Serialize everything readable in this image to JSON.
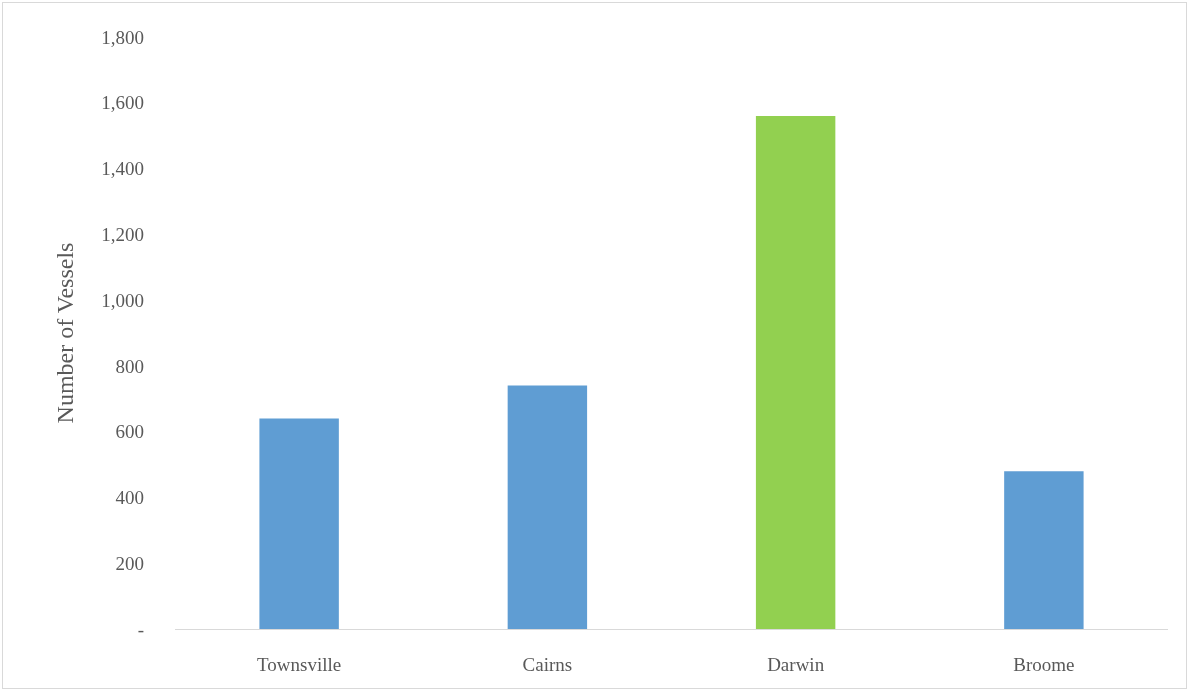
{
  "chart_data": {
    "type": "bar",
    "ylabel": "Number of Vessels",
    "categories": [
      "Townsville",
      "Cairns",
      "Darwin",
      "Broome"
    ],
    "values": [
      640,
      740,
      1560,
      480
    ],
    "colors": [
      "#5f9dd3",
      "#5f9dd3",
      "#92d050",
      "#5f9dd3"
    ],
    "ylim": [
      0,
      1800
    ],
    "yticks": [
      {
        "value": 0,
        "label": "-"
      },
      {
        "value": 200,
        "label": "200"
      },
      {
        "value": 400,
        "label": "400"
      },
      {
        "value": 600,
        "label": "600"
      },
      {
        "value": 800,
        "label": "800"
      },
      {
        "value": 1000,
        "label": "1,000"
      },
      {
        "value": 1200,
        "label": "1,200"
      },
      {
        "value": 1400,
        "label": "1,400"
      },
      {
        "value": 1600,
        "label": "1,600"
      },
      {
        "value": 1800,
        "label": "1,800"
      }
    ],
    "grid": false
  }
}
